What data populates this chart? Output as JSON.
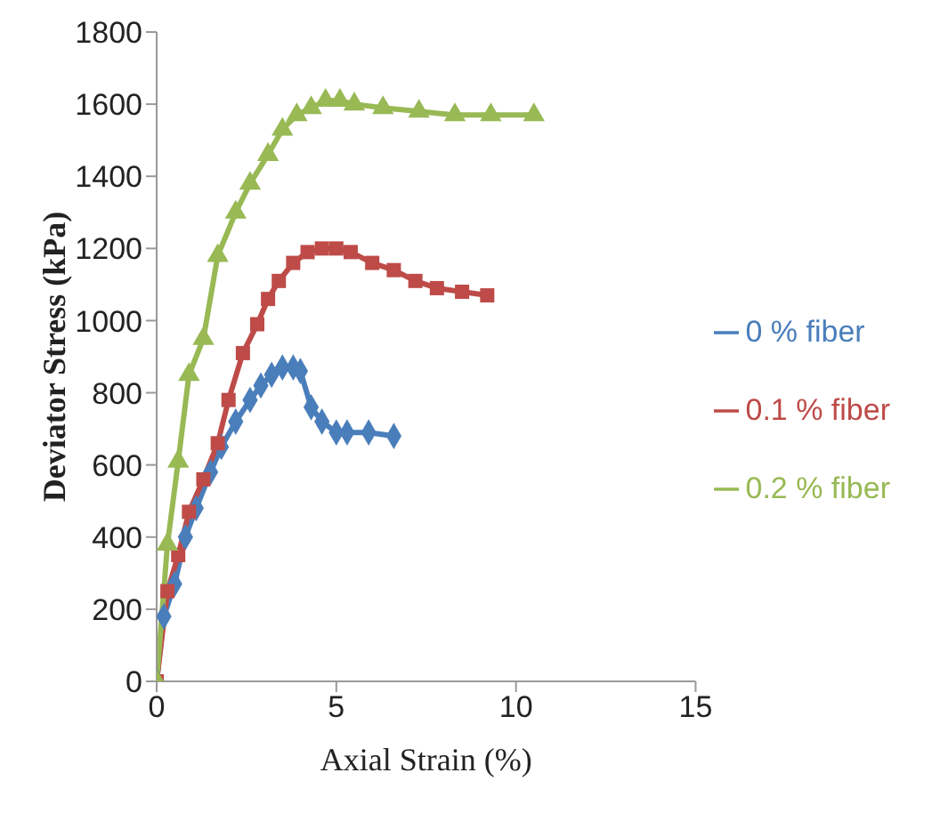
{
  "chart_data": {
    "type": "line",
    "xlabel": "Axial Strain (%)",
    "ylabel": "Deviator Stress (kPa)",
    "xlim": [
      0,
      15
    ],
    "xticks": [
      0,
      5,
      10,
      15
    ],
    "ylim": [
      0,
      1800
    ],
    "yticks": [
      0,
      200,
      400,
      600,
      800,
      1000,
      1200,
      1400,
      1600,
      1800
    ],
    "grid": false,
    "legend": "right",
    "line_style": "solid",
    "series": [
      {
        "name": "0 % fiber",
        "color": "#4a7ebb",
        "marker": "diamond",
        "x": [
          0,
          0.2,
          0.5,
          0.8,
          1.1,
          1.5,
          1.8,
          2.2,
          2.6,
          2.9,
          3.2,
          3.5,
          3.8,
          4.0,
          4.3,
          4.6,
          5.0,
          5.3,
          5.9,
          6.6
        ],
        "values": [
          0,
          180,
          270,
          400,
          480,
          580,
          650,
          720,
          780,
          820,
          850,
          870,
          870,
          860,
          760,
          720,
          690,
          690,
          690,
          680
        ]
      },
      {
        "name": "0.1 % fiber",
        "color": "#be4b48",
        "marker": "square",
        "x": [
          0,
          0.3,
          0.6,
          0.9,
          1.3,
          1.7,
          2.0,
          2.4,
          2.8,
          3.1,
          3.4,
          3.8,
          4.2,
          4.6,
          5.0,
          5.4,
          6.0,
          6.6,
          7.2,
          7.8,
          8.5,
          9.2
        ],
        "values": [
          0,
          250,
          350,
          470,
          560,
          660,
          780,
          910,
          990,
          1060,
          1110,
          1160,
          1190,
          1200,
          1200,
          1190,
          1160,
          1140,
          1110,
          1090,
          1080,
          1070
        ]
      },
      {
        "name": "0.2 % fiber",
        "color": "#98b954",
        "marker": "triangle",
        "x": [
          0,
          0.3,
          0.6,
          0.9,
          1.3,
          1.7,
          2.2,
          2.6,
          3.1,
          3.5,
          3.9,
          4.3,
          4.7,
          5.1,
          5.5,
          6.3,
          7.3,
          8.3,
          9.3,
          10.5
        ],
        "values": [
          0,
          380,
          610,
          850,
          950,
          1180,
          1300,
          1380,
          1460,
          1530,
          1570,
          1590,
          1610,
          1610,
          1600,
          1590,
          1580,
          1570,
          1570,
          1570
        ]
      }
    ]
  }
}
